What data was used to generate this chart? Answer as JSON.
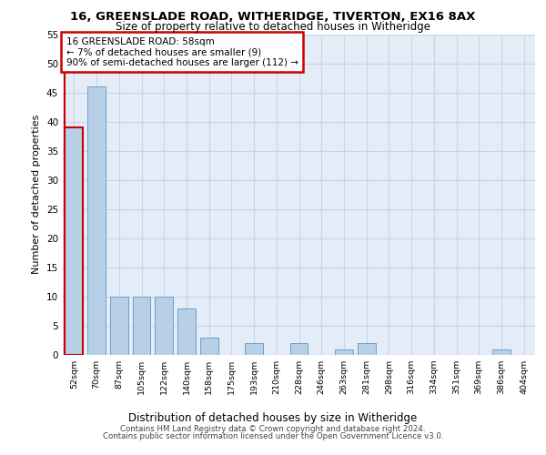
{
  "title1": "16, GREENSLADE ROAD, WITHERIDGE, TIVERTON, EX16 8AX",
  "title2": "Size of property relative to detached houses in Witheridge",
  "xlabel": "Distribution of detached houses by size in Witheridge",
  "ylabel": "Number of detached properties",
  "categories": [
    "52sqm",
    "70sqm",
    "87sqm",
    "105sqm",
    "122sqm",
    "140sqm",
    "158sqm",
    "175sqm",
    "193sqm",
    "210sqm",
    "228sqm",
    "246sqm",
    "263sqm",
    "281sqm",
    "298sqm",
    "316sqm",
    "334sqm",
    "351sqm",
    "369sqm",
    "386sqm",
    "404sqm"
  ],
  "values": [
    39,
    46,
    10,
    10,
    10,
    8,
    3,
    0,
    2,
    0,
    2,
    0,
    1,
    2,
    0,
    0,
    0,
    0,
    0,
    1,
    0
  ],
  "bar_color": "#b8cfe8",
  "bar_edgecolor": "#6aa0cc",
  "highlight_color": "#cc0000",
  "highlight_index": 0,
  "annotation_line1": "16 GREENSLADE ROAD: 58sqm",
  "annotation_line2": "← 7% of detached houses are smaller (9)",
  "annotation_line3": "90% of semi-detached houses are larger (112) →",
  "annotation_box_color": "#ffffff",
  "annotation_border_color": "#cc0000",
  "ylim": [
    0,
    55
  ],
  "yticks": [
    0,
    5,
    10,
    15,
    20,
    25,
    30,
    35,
    40,
    45,
    50,
    55
  ],
  "grid_color": "#c8d4e8",
  "bg_color": "#e4ecf7",
  "footer1": "Contains HM Land Registry data © Crown copyright and database right 2024.",
  "footer2": "Contains public sector information licensed under the Open Government Licence v3.0."
}
